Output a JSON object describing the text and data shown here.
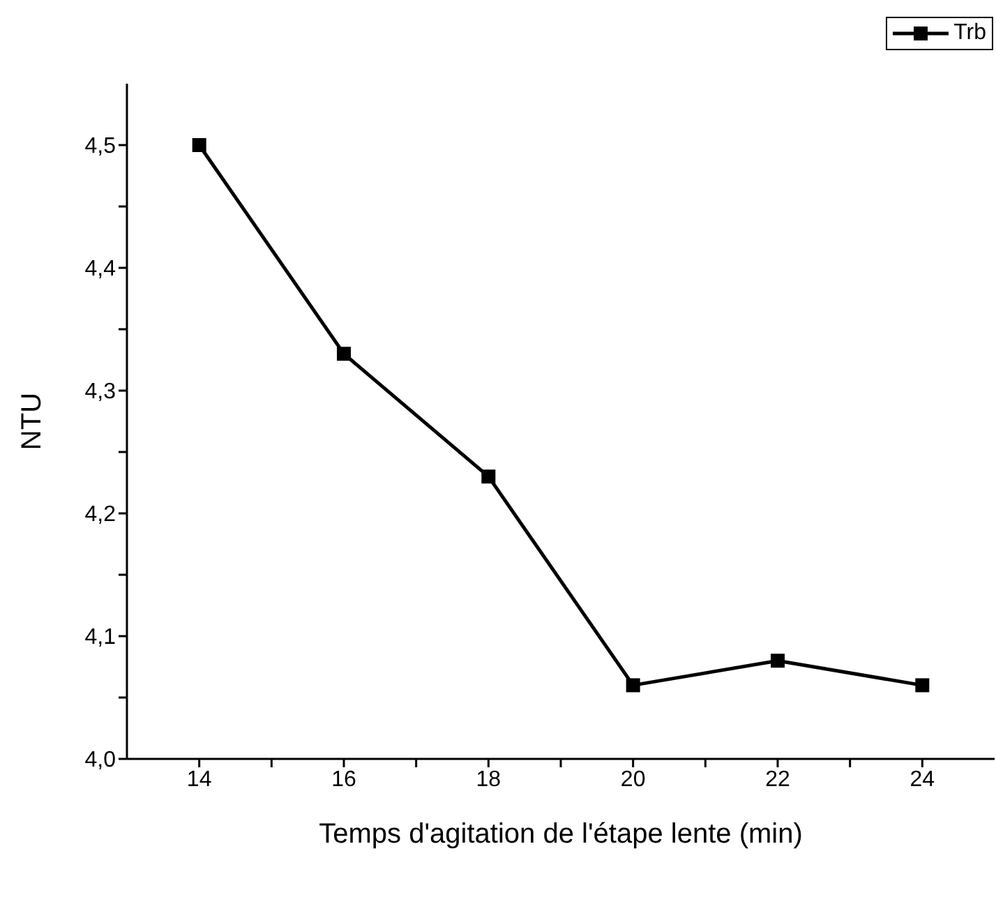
{
  "chart_data": {
    "type": "line",
    "xlabel": "Temps d'agitation de l'étape lente (min)",
    "ylabel": "NTU",
    "x": [
      14,
      16,
      18,
      20,
      22,
      24
    ],
    "series": [
      {
        "name": "Trb",
        "color": "#000000",
        "values": [
          4.5,
          4.33,
          4.23,
          4.06,
          4.08,
          4.06
        ]
      }
    ],
    "xlim": [
      13,
      25
    ],
    "xticks": [
      14,
      {
        "value": 15,
        "label": null
      },
      16,
      {
        "value": 17,
        "label": null
      },
      18,
      {
        "value": 19,
        "label": null
      },
      20,
      {
        "value": 21,
        "label": null
      },
      22,
      {
        "value": 23,
        "label": null
      },
      24
    ],
    "ylim": [
      4.0,
      4.55
    ],
    "yticks": [
      {
        "value": 4.0,
        "label": "4,0"
      },
      {
        "value": 4.05,
        "label": null
      },
      {
        "value": 4.1,
        "label": "4,1"
      },
      {
        "value": 4.15,
        "label": null
      },
      {
        "value": 4.2,
        "label": "4,2"
      },
      {
        "value": 4.25,
        "label": null
      },
      {
        "value": 4.3,
        "label": "4,3"
      },
      {
        "value": 4.35,
        "label": null
      },
      {
        "value": 4.4,
        "label": "4,4"
      },
      {
        "value": 4.45,
        "label": null
      },
      {
        "value": 4.5,
        "label": "4,5"
      }
    ],
    "grid": false,
    "legend": "top right",
    "marker": "square",
    "line_style": "solid"
  }
}
